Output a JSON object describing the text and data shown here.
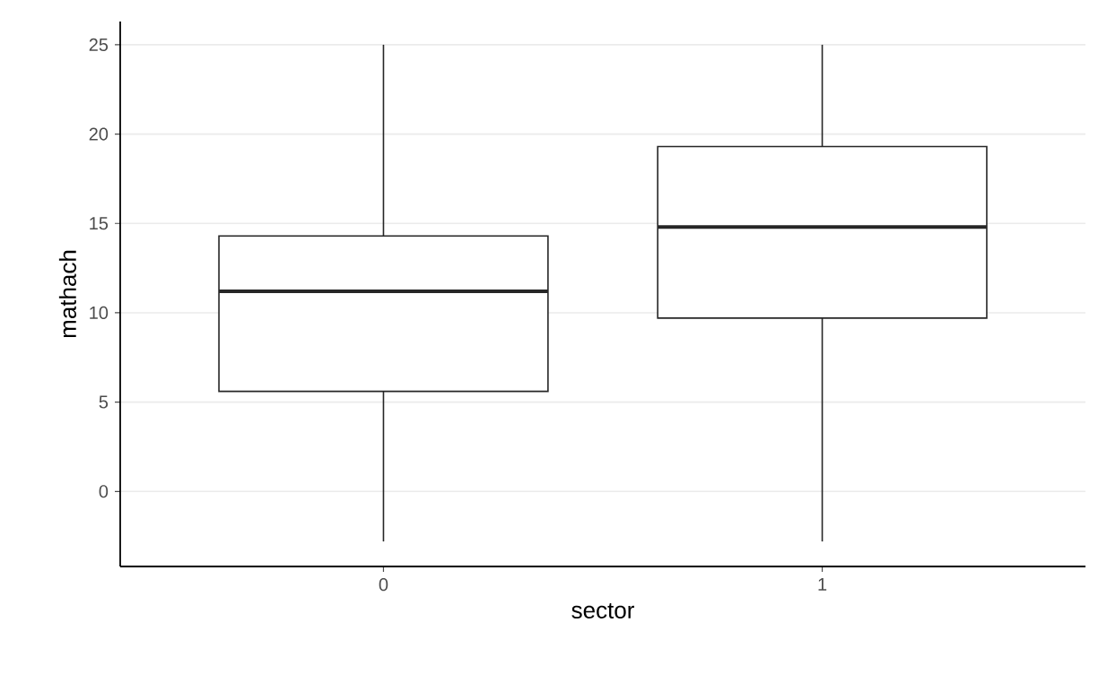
{
  "chart_data": {
    "type": "box",
    "xlabel": "sector",
    "ylabel": "mathach",
    "categories": [
      "0",
      "1"
    ],
    "boxes": [
      {
        "low": -2.8,
        "q1": 5.6,
        "median": 11.2,
        "q3": 14.3,
        "high": 25
      },
      {
        "low": -2.8,
        "q1": 9.7,
        "median": 14.8,
        "q3": 19.3,
        "high": 25
      }
    ],
    "ylim": [
      -4.2,
      26.3
    ],
    "yticks": [
      0,
      5,
      10,
      15,
      20,
      25
    ],
    "grid": "y"
  }
}
